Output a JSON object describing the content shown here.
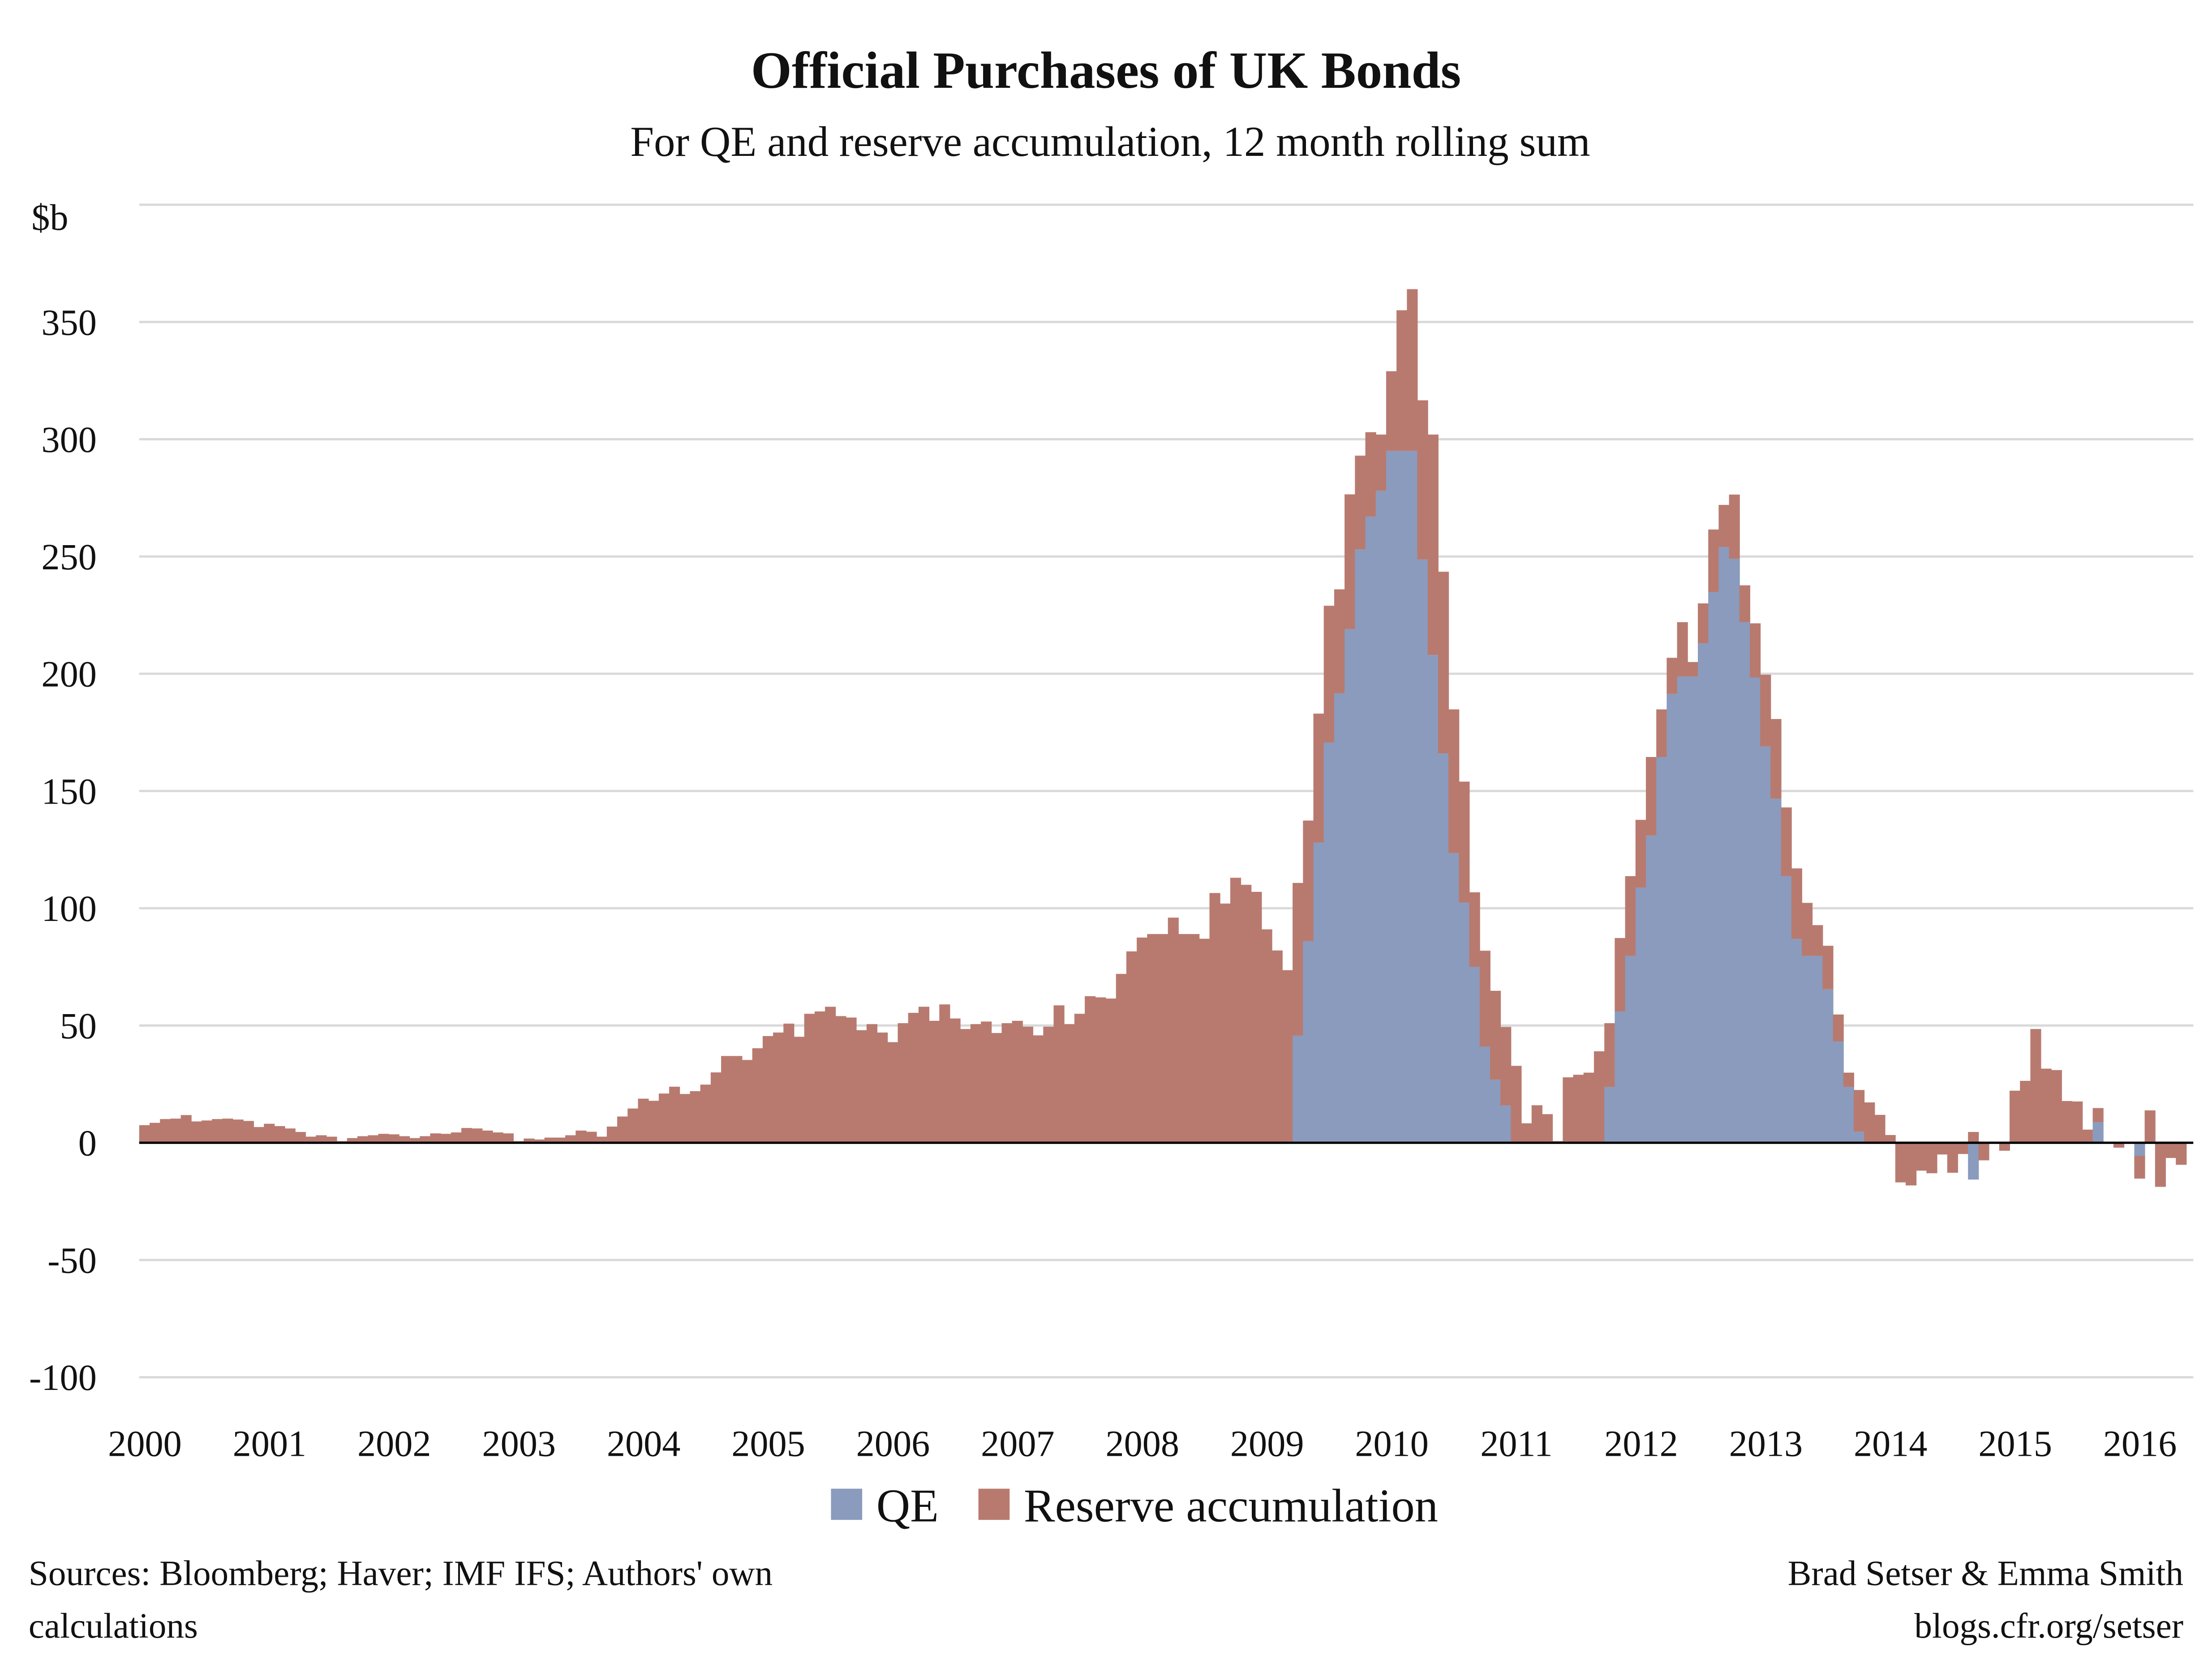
{
  "chart_data": {
    "type": "bar",
    "stacked": true,
    "title": "Official Purchases of UK Bonds",
    "subtitle": "For QE and reserve accumulation, 12 month rolling sum",
    "ylabel": "$b",
    "xlabel": "",
    "ylim": [
      -100,
      400
    ],
    "yticks": [
      -100,
      -50,
      0,
      50,
      100,
      150,
      200,
      250,
      300,
      350
    ],
    "xtick_labels": [
      "2000",
      "2001",
      "2002",
      "2003",
      "2004",
      "2005",
      "2006",
      "2007",
      "2008",
      "2009",
      "2010",
      "2011",
      "2012",
      "2013",
      "2014",
      "2015",
      "2016"
    ],
    "grid": true,
    "legend_position": "bottom",
    "x": [
      "2000-01",
      "2000-02",
      "2000-03",
      "2000-04",
      "2000-05",
      "2000-06",
      "2000-07",
      "2000-08",
      "2000-09",
      "2000-10",
      "2000-11",
      "2000-12",
      "2001-01",
      "2001-02",
      "2001-03",
      "2001-04",
      "2001-05",
      "2001-06",
      "2001-07",
      "2001-08",
      "2001-09",
      "2001-10",
      "2001-11",
      "2001-12",
      "2002-01",
      "2002-02",
      "2002-03",
      "2002-04",
      "2002-05",
      "2002-06",
      "2002-07",
      "2002-08",
      "2002-09",
      "2002-10",
      "2002-11",
      "2002-12",
      "2003-01",
      "2003-02",
      "2003-03",
      "2003-04",
      "2003-05",
      "2003-06",
      "2003-07",
      "2003-08",
      "2003-09",
      "2003-10",
      "2003-11",
      "2003-12",
      "2004-01",
      "2004-02",
      "2004-03",
      "2004-04",
      "2004-05",
      "2004-06",
      "2004-07",
      "2004-08",
      "2004-09",
      "2004-10",
      "2004-11",
      "2004-12",
      "2005-01",
      "2005-02",
      "2005-03",
      "2005-04",
      "2005-05",
      "2005-06",
      "2005-07",
      "2005-08",
      "2005-09",
      "2005-10",
      "2005-11",
      "2005-12",
      "2006-01",
      "2006-02",
      "2006-03",
      "2006-04",
      "2006-05",
      "2006-06",
      "2006-07",
      "2006-08",
      "2006-09",
      "2006-10",
      "2006-11",
      "2006-12",
      "2007-01",
      "2007-02",
      "2007-03",
      "2007-04",
      "2007-05",
      "2007-06",
      "2007-07",
      "2007-08",
      "2007-09",
      "2007-10",
      "2007-11",
      "2007-12",
      "2008-01",
      "2008-02",
      "2008-03",
      "2008-04",
      "2008-05",
      "2008-06",
      "2008-07",
      "2008-08",
      "2008-09",
      "2008-10",
      "2008-11",
      "2008-12",
      "2009-01",
      "2009-02",
      "2009-03",
      "2009-04",
      "2009-05",
      "2009-06",
      "2009-07",
      "2009-08",
      "2009-09",
      "2009-10",
      "2009-11",
      "2009-12",
      "2010-01",
      "2010-02",
      "2010-03",
      "2010-04",
      "2010-05",
      "2010-06",
      "2010-07",
      "2010-08",
      "2010-09",
      "2010-10",
      "2010-11",
      "2010-12",
      "2011-01",
      "2011-02",
      "2011-03",
      "2011-04",
      "2011-05",
      "2011-06",
      "2011-07",
      "2011-08",
      "2011-09",
      "2011-10",
      "2011-11",
      "2011-12",
      "2012-01",
      "2012-02",
      "2012-03",
      "2012-04",
      "2012-05",
      "2012-06",
      "2012-07",
      "2012-08",
      "2012-09",
      "2012-10",
      "2012-11",
      "2012-12",
      "2013-01",
      "2013-02",
      "2013-03",
      "2013-04",
      "2013-05",
      "2013-06",
      "2013-07",
      "2013-08",
      "2013-09",
      "2013-10",
      "2013-11",
      "2013-12",
      "2014-01",
      "2014-02",
      "2014-03",
      "2014-04",
      "2014-05",
      "2014-06",
      "2014-07",
      "2014-08",
      "2014-09",
      "2014-10",
      "2014-11",
      "2014-12",
      "2015-01",
      "2015-02",
      "2015-03",
      "2015-04",
      "2015-05",
      "2015-06",
      "2015-07",
      "2015-08",
      "2015-09",
      "2015-10",
      "2015-11",
      "2015-12",
      "2016-01",
      "2016-02",
      "2016-03",
      "2016-04",
      "2016-05"
    ],
    "series": [
      {
        "name": "QE",
        "color": "#8a9bbd",
        "values": [
          0,
          0,
          0,
          0,
          0,
          0,
          0,
          0,
          0,
          0,
          0,
          0,
          0,
          0,
          0,
          0,
          0,
          0,
          0,
          0,
          0,
          0,
          0,
          0,
          0,
          0,
          0,
          0,
          0,
          0,
          0,
          0,
          0,
          0,
          0,
          0,
          0,
          0,
          0,
          0,
          0,
          0,
          0,
          0,
          0,
          0,
          0,
          0,
          0,
          0,
          0,
          0,
          0,
          0,
          0,
          0,
          0,
          0,
          0,
          0,
          0,
          0,
          0,
          0,
          0,
          0,
          0,
          0,
          0,
          0,
          0,
          0,
          0,
          0,
          0,
          0,
          0,
          0,
          0,
          0,
          0,
          0,
          0,
          0,
          0,
          0,
          0,
          0,
          0,
          0,
          0,
          0,
          0,
          0,
          0,
          0,
          0,
          0,
          0,
          0,
          0,
          0,
          0,
          0,
          0,
          0,
          0,
          0,
          0,
          0,
          0,
          45.7,
          86,
          128,
          170.7,
          191.7,
          219,
          253,
          267,
          278,
          295,
          295,
          295,
          248.7,
          208,
          166,
          123.5,
          102.4,
          75,
          41,
          26.9,
          15.9,
          0,
          0,
          0,
          0,
          0,
          0,
          0,
          0,
          0,
          23.8,
          56,
          79.7,
          108.8,
          131,
          164.5,
          191.4,
          198.8,
          198.8,
          213,
          234.8,
          254,
          249,
          222,
          198.4,
          169,
          146.7,
          113.7,
          86.9,
          79.7,
          79.7,
          65.4,
          43.2,
          23.8,
          4.7,
          0,
          0,
          0,
          0,
          0,
          0,
          0,
          0,
          0,
          0,
          -15.7,
          0,
          0,
          0,
          0,
          0,
          0,
          0,
          0,
          0,
          0,
          0,
          8.8,
          0,
          0,
          0,
          -5.6,
          0,
          0,
          0,
          0
        ]
      },
      {
        "name": "Reserve accumulation",
        "color": "#b87a6f",
        "values": [
          7.5,
          8.5,
          10.1,
          10.3,
          11.8,
          9.1,
          9.5,
          10.1,
          10.3,
          9.9,
          9.3,
          6.7,
          8.1,
          7.1,
          6.1,
          4.6,
          2.6,
          3.2,
          2.6,
          0.7,
          2.0,
          2.8,
          3.2,
          3.8,
          3.6,
          2.8,
          2.0,
          2.8,
          4.0,
          3.8,
          4.4,
          6.3,
          6.1,
          5.2,
          4.4,
          4.0,
          0.7,
          1.8,
          1.4,
          2.2,
          2.2,
          3.2,
          5.2,
          4.7,
          2.6,
          6.9,
          11.2,
          14.6,
          18.8,
          17.9,
          21,
          23.9,
          20.8,
          22,
          24.8,
          30,
          37,
          37,
          35.3,
          40.3,
          45.5,
          47,
          50.8,
          45.2,
          55,
          56,
          58,
          54,
          53.4,
          48,
          50.6,
          47,
          42.9,
          51,
          55.4,
          58,
          52,
          59,
          53,
          48.5,
          50.6,
          51.7,
          46.8,
          51,
          52,
          49.5,
          45.8,
          49.5,
          58.6,
          50.6,
          55,
          62.5,
          62,
          61.5,
          72,
          81.6,
          87.5,
          89,
          89,
          96,
          89,
          89,
          87,
          106.5,
          102,
          113,
          110,
          107,
          91,
          82,
          73.6,
          65.1,
          51.4,
          55,
          58.3,
          44.3,
          57.5,
          40,
          36,
          24,
          34,
          60,
          69,
          67.9,
          94,
          77.5,
          61.3,
          51.6,
          31.8,
          40.9,
          37.9,
          33.5,
          32.8,
          8.3,
          16,
          12.2,
          0.7,
          27.9,
          29,
          29.9,
          39,
          27.2,
          31.3,
          34,
          28.9,
          33.5,
          20.3,
          15.4,
          23.2,
          6.2,
          17,
          26.7,
          18,
          27.4,
          15.7,
          23.1,
          30.6,
          34,
          29.3,
          30.1,
          22.6,
          13.1,
          18.6,
          11.5,
          6.1,
          17.8,
          17.2,
          11.9,
          3.3,
          -16.9,
          -18.2,
          -11.9,
          -13,
          -5,
          -12.8,
          -4.8,
          4.6,
          -7.5,
          -0.4,
          -3.4,
          22.2,
          26.4,
          48.5,
          31.6,
          31,
          17.8,
          17.6,
          5.6,
          6,
          0,
          -2.1,
          0,
          -9.7,
          13.8,
          -18.8,
          -6.5,
          -9.4
        ]
      }
    ]
  },
  "legend": {
    "qe_label": "QE",
    "reserve_label": "Reserve accumulation"
  },
  "footer": {
    "sources_line1": "Sources: Bloomberg; Haver; IMF IFS; Authors' own",
    "sources_line2": "calculations",
    "authors": "Brad Setser & Emma Smith",
    "website": "blogs.cfr.org/setser"
  }
}
